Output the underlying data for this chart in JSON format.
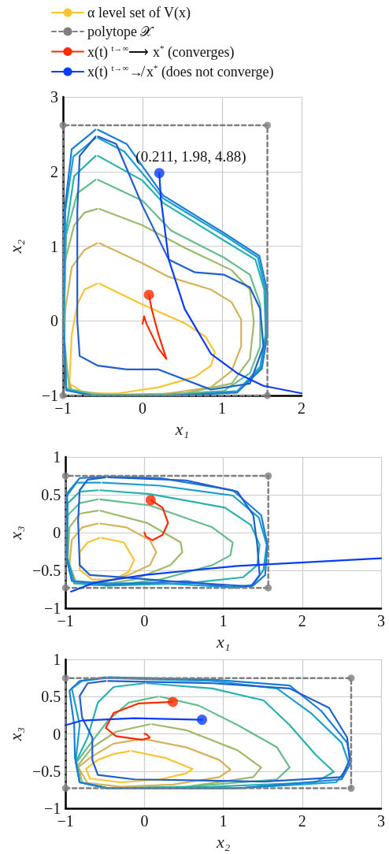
{
  "chart_data": [
    {
      "type": "line",
      "xlabel": "x₁",
      "ylabel": "x₂",
      "xlim": [
        -1,
        2
      ],
      "ylim": [
        -1,
        3
      ],
      "xticks": [
        -1,
        0,
        1,
        2
      ],
      "yticks": [
        -1,
        0,
        1,
        2,
        3
      ],
      "grid": true,
      "legend": "top",
      "marker": "none",
      "line_style": "solid",
      "annotations": [
        {
          "text": "(0.211, 1.98, 4.88)",
          "x": 0.211,
          "y": 1.98
        }
      ],
      "series": [
        {
          "name": "α level set of V(x)",
          "color": "#f7c531",
          "x": [
            -0.54,
            0,
            0.53,
            0.79,
            0.91,
            0.86,
            0.66,
            0.2,
            -0.3,
            -0.73,
            -0.92,
            -0.89,
            -0.82,
            -0.73,
            -0.57
          ],
          "values": [
            0.5,
            0.22,
            -0.03,
            -0.21,
            -0.42,
            -0.6,
            -0.75,
            -0.89,
            -0.97,
            -0.97,
            -0.84,
            -0.18,
            0.22,
            0.42,
            0.5
          ]
        },
        {
          "color": "#d4b35c",
          "x": [
            -0.54,
            0,
            0.33,
            0.86,
            1.12,
            1.24,
            1.24,
            1.12,
            0.86,
            0.2,
            -0.46,
            -0.89,
            -0.99,
            -0.97,
            -0.89,
            -0.73,
            -0.57
          ],
          "values": [
            1.04,
            0.77,
            0.59,
            0.42,
            0.25,
            0.02,
            -0.34,
            -0.67,
            -0.89,
            -0.99,
            -1.0,
            -0.94,
            -0.51,
            0.16,
            0.72,
            0.95,
            1.04
          ]
        },
        {
          "color": "#9dba6a",
          "x": [
            -0.54,
            0,
            0.53,
            1.12,
            1.35,
            1.4,
            1.35,
            1.12,
            0.53,
            -0.46,
            -0.92,
            -0.99,
            -0.97,
            -0.86,
            -0.73,
            -0.57
          ],
          "values": [
            1.5,
            1.28,
            0.98,
            0.68,
            0.42,
            -0.01,
            -0.51,
            -0.84,
            -0.97,
            -0.99,
            -0.92,
            -0.18,
            0.82,
            1.28,
            1.45,
            1.5
          ]
        },
        {
          "color": "#66bc8c",
          "x": [
            -0.56,
            0,
            0.36,
            1.02,
            1.35,
            1.48,
            1.48,
            1.35,
            1.02,
            0.2,
            -0.63,
            -0.96,
            -0.99,
            -0.96,
            -0.82,
            -0.59
          ],
          "values": [
            1.89,
            1.61,
            1.21,
            0.85,
            0.62,
            0.22,
            -0.34,
            -0.7,
            -0.94,
            -0.99,
            -0.99,
            -0.9,
            -0.01,
            1.15,
            1.71,
            1.89
          ]
        },
        {
          "color": "#26b2b0",
          "x": [
            -0.56,
            0,
            0.26,
            1.02,
            1.42,
            1.53,
            1.55,
            1.48,
            1.19,
            0.36,
            -0.63,
            -0.96,
            -0.99,
            -0.97,
            -0.86,
            -0.59
          ],
          "values": [
            2.21,
            1.88,
            1.58,
            1.08,
            0.82,
            0.42,
            -0.18,
            -0.61,
            -0.94,
            -1.0,
            -1.0,
            -0.92,
            -0.01,
            1.15,
            1.94,
            2.21
          ]
        },
        {
          "color": "#1a9ed0",
          "x": [
            -0.56,
            -0.23,
            0.26,
            1.02,
            1.45,
            1.55,
            1.55,
            1.48,
            1.19,
            0.36,
            -0.63,
            -0.96,
            -0.99,
            -0.97,
            -0.87,
            -0.59
          ],
          "values": [
            2.45,
            2.27,
            1.64,
            1.15,
            0.85,
            0.39,
            -0.18,
            -0.64,
            -0.95,
            -1.0,
            -1.0,
            -0.92,
            -0.01,
            1.48,
            2.2,
            2.45
          ]
        },
        {
          "color": "#1b7ed6",
          "x": [
            -0.56,
            -0.2,
            0.26,
            1.02,
            1.47,
            1.57,
            1.57,
            1.5,
            1.19,
            0.36,
            -0.63,
            -0.96,
            -1.0,
            -0.98,
            -0.89,
            -0.59
          ],
          "values": [
            2.56,
            2.37,
            1.68,
            1.18,
            0.87,
            0.39,
            -0.18,
            -0.64,
            -0.96,
            -1.0,
            -1.0,
            -0.93,
            -0.01,
            1.48,
            2.3,
            2.56
          ]
        },
        {
          "color": "#1f5fd0",
          "x": [
            -0.56,
            -0.33,
            0,
            0.33,
            0.66,
            1.02,
            1.35,
            1.48,
            1.52,
            1.35,
            0.86,
            0.2,
            -0.2,
            -0.56,
            -0.79,
            -0.82,
            -0.82,
            -0.79,
            -0.59
          ],
          "values": [
            2.47,
            2.37,
            1.54,
            0.82,
            0.65,
            0.62,
            0.45,
            0.16,
            -0.34,
            -0.84,
            -0.92,
            -0.65,
            -0.65,
            -0.6,
            -0.47,
            -0.01,
            1.48,
            2.21,
            2.47
          ]
        },
        {
          "name": "polytope 𝒳",
          "color": "#808080",
          "line_style": "dashed",
          "x": [
            -1,
            1.57,
            1.57,
            -1,
            -1
          ],
          "values": [
            -1,
            -1,
            2.62,
            2.62,
            -0.97
          ]
        },
        {
          "type": "scatter",
          "marker": "circle",
          "color": "#808080",
          "x": [
            -1,
            1.57,
            1.57,
            -1
          ],
          "values": [
            -1,
            -1,
            2.62,
            2.62
          ]
        },
        {
          "name": "x(t) $^{t→∞}$⟶ x$^{*}$ (converges)",
          "color": "#ff2a00",
          "x": [
            0.08,
            0.115,
            0.2,
            0.3,
            0.2,
            0.05,
            0.02,
            0
          ],
          "values": [
            0.35,
            0.16,
            -0.18,
            -0.51,
            -0.37,
            -0.04,
            0.06,
            -0.04
          ]
        },
        {
          "type": "scatter",
          "marker": "circle",
          "color": "#ff2a00",
          "x": [
            0.08
          ],
          "values": [
            0.35
          ]
        },
        {
          "name": "x(t) $^{t→∞}$↛ x$^{*}$ (does not converge)",
          "color": "#0a3cff",
          "x": [
            0.211,
            0.23,
            0.33,
            0.53,
            0.86,
            1.19,
            1.52,
            2.0
          ],
          "values": [
            1.98,
            1.64,
            0.82,
            0.16,
            -0.44,
            -0.7,
            -0.87,
            -0.97
          ]
        },
        {
          "type": "scatter",
          "marker": "circle",
          "color": "#0a3cff",
          "x": [
            0.211
          ],
          "values": [
            1.98
          ]
        }
      ]
    },
    {
      "type": "line",
      "xlabel": "x₁",
      "ylabel": "x₃",
      "xlim": [
        -1,
        3
      ],
      "ylim": [
        -1,
        1
      ],
      "xticks": [
        -1,
        0,
        1,
        2,
        3
      ],
      "yticks": [
        -1,
        -0.5,
        0,
        0.5,
        1
      ],
      "grid": true,
      "marker": "none",
      "line_style": "solid",
      "series": [
        {
          "color": "#f7c531",
          "x": [
            -0.54,
            -0.26,
            -0.13,
            -0.2,
            -0.39,
            -0.66,
            -0.82,
            -0.82,
            -0.72,
            -0.57
          ],
          "values": [
            -0.07,
            -0.13,
            -0.36,
            -0.52,
            -0.62,
            -0.62,
            -0.49,
            -0.26,
            -0.13,
            -0.07
          ]
        },
        {
          "color": "#d4b35c",
          "x": [
            -0.56,
            -0.23,
            0.07,
            0.15,
            0.07,
            -0.2,
            -0.56,
            -0.86,
            -0.95,
            -0.92,
            -0.79,
            -0.59
          ],
          "values": [
            0.12,
            0.07,
            -0.1,
            -0.26,
            -0.43,
            -0.56,
            -0.67,
            -0.66,
            -0.43,
            -0.1,
            0.07,
            0.12
          ]
        },
        {
          "color": "#9dba6a",
          "x": [
            -0.56,
            0.03,
            0.46,
            0.48,
            0.33,
            -0.13,
            -0.63,
            -0.89,
            -0.97,
            -0.95,
            -0.82,
            -0.59
          ],
          "values": [
            0.29,
            0.13,
            -0.13,
            -0.26,
            -0.43,
            -0.62,
            -0.7,
            -0.66,
            -0.33,
            0.07,
            0.25,
            0.29
          ]
        },
        {
          "color": "#66bc8c",
          "x": [
            -0.56,
            0.07,
            0.86,
            1.12,
            1.09,
            0.86,
            0.2,
            -0.46,
            -0.89,
            -0.98,
            -0.97,
            -0.82,
            -0.59
          ],
          "values": [
            0.44,
            0.36,
            0.07,
            -0.13,
            -0.3,
            -0.43,
            -0.62,
            -0.7,
            -0.67,
            -0.33,
            0.23,
            0.39,
            0.44
          ]
        },
        {
          "color": "#26b2b0",
          "x": [
            -0.56,
            0.07,
            1.02,
            1.35,
            1.46,
            1.43,
            1.25,
            0.53,
            -0.46,
            -0.89,
            -0.98,
            -0.97,
            -0.82,
            -0.59
          ],
          "values": [
            0.56,
            0.51,
            0.33,
            0.1,
            -0.16,
            -0.43,
            -0.59,
            -0.67,
            -0.7,
            -0.67,
            -0.33,
            0.39,
            0.54,
            0.56
          ]
        },
        {
          "color": "#1a9ed0",
          "x": [
            -0.53,
            0.2,
            1.12,
            1.45,
            1.55,
            1.51,
            1.38,
            1.12,
            0.2,
            -0.46,
            -0.89,
            -0.98,
            -0.98,
            -0.86,
            -0.56
          ],
          "values": [
            0.66,
            0.62,
            0.49,
            0.2,
            -0.16,
            -0.49,
            -0.69,
            -0.72,
            -0.67,
            -0.67,
            -0.64,
            -0.33,
            0.49,
            0.66,
            0.66
          ]
        },
        {
          "color": "#1b7ed6",
          "x": [
            -0.46,
            0.2,
            1.12,
            1.48,
            1.56,
            1.53,
            1.38,
            1.12,
            0.53,
            -0.46,
            -0.92,
            -0.99,
            -0.98,
            -0.82,
            -0.49
          ],
          "values": [
            0.74,
            0.72,
            0.56,
            0.23,
            -0.16,
            -0.56,
            -0.7,
            -0.73,
            -0.64,
            -0.69,
            -0.64,
            -0.33,
            0.52,
            0.72,
            0.74
          ]
        },
        {
          "color": "#1f5fd0",
          "x": [
            -0.46,
            0.53,
            1.18,
            1.38,
            1.43,
            1.46,
            1.35,
            0.53,
            -0.3,
            -0.69,
            -0.82,
            -0.84,
            -0.82,
            -0.72,
            -0.49
          ],
          "values": [
            0.73,
            0.69,
            0.54,
            0.23,
            -0.16,
            -0.56,
            -0.71,
            -0.66,
            -0.59,
            -0.56,
            -0.43,
            0.16,
            0.56,
            0.7,
            0.73
          ]
        },
        {
          "color": "#808080",
          "line_style": "dashed",
          "x": [
            -1,
            1.57,
            1.57,
            -1,
            -1
          ],
          "values": [
            -0.73,
            -0.73,
            0.75,
            0.75,
            -0.71
          ]
        },
        {
          "type": "scatter",
          "marker": "circle",
          "color": "#808080",
          "x": [
            -1,
            1.57,
            1.57,
            -1
          ],
          "values": [
            -0.73,
            -0.73,
            0.75,
            0.75
          ]
        },
        {
          "color": "#ff2a00",
          "x": [
            0.08,
            0.23,
            0.3,
            0.23,
            0.1,
            0.02,
            0
          ],
          "values": [
            0.43,
            0.33,
            0.13,
            -0.03,
            -0.1,
            -0.05,
            0
          ]
        },
        {
          "type": "scatter",
          "marker": "circle",
          "color": "#ff2a00",
          "x": [
            0.08
          ],
          "values": [
            0.43
          ]
        },
        {
          "color": "#0a3cff",
          "x": [
            -0.93,
            -0.63,
            0,
            1.18,
            3
          ],
          "values": [
            -0.78,
            -0.66,
            -0.56,
            -0.44,
            -0.34
          ]
        }
      ]
    },
    {
      "type": "line",
      "xlabel": "x₂",
      "ylabel": "x₃",
      "xlim": [
        -1,
        3
      ],
      "ylim": [
        -1,
        1
      ],
      "xticks": [
        -1,
        0,
        1,
        2,
        3
      ],
      "yticks": [
        -1,
        -0.5,
        0,
        0.5,
        1
      ],
      "grid": true,
      "marker": "none",
      "line_style": "solid",
      "series": [
        {
          "color": "#f7c531",
          "x": [
            -0.16,
            0.26,
            0.61,
            0.53,
            0.2,
            -0.3,
            -0.69,
            -0.74,
            -0.59,
            -0.39,
            -0.19
          ],
          "values": [
            -0.23,
            -0.32,
            -0.47,
            -0.53,
            -0.61,
            -0.65,
            -0.6,
            -0.47,
            -0.35,
            -0.27,
            -0.23
          ]
        },
        {
          "color": "#d4b35c",
          "x": [
            0,
            0.53,
            0.95,
            1.09,
            0.95,
            0.36,
            -0.3,
            -0.72,
            -0.84,
            -0.69,
            -0.39,
            -0.03
          ],
          "values": [
            -0.07,
            -0.18,
            -0.35,
            -0.48,
            -0.58,
            -0.68,
            -0.71,
            -0.66,
            -0.45,
            -0.32,
            -0.13,
            -0.07
          ]
        },
        {
          "color": "#9dba6a",
          "x": [
            0.1,
            0.53,
            1.18,
            1.48,
            1.38,
            0.53,
            -0.46,
            -0.79,
            -0.84,
            -0.66,
            -0.36,
            0.07
          ],
          "values": [
            0.13,
            0.05,
            -0.22,
            -0.45,
            -0.58,
            -0.71,
            -0.73,
            -0.65,
            -0.42,
            -0.18,
            0.03,
            0.13
          ]
        },
        {
          "color": "#66bc8c",
          "x": [
            0.2,
            0.69,
            1.18,
            1.68,
            1.84,
            1.68,
            0.53,
            -0.46,
            -0.82,
            -0.86,
            -0.72,
            -0.46,
            -0.2,
            0.17
          ],
          "values": [
            0.5,
            0.38,
            0.12,
            -0.18,
            -0.45,
            -0.61,
            -0.71,
            -0.73,
            -0.65,
            -0.38,
            -0.18,
            0.18,
            0.42,
            0.5
          ]
        },
        {
          "color": "#26b2b0",
          "x": [
            0.03,
            0.86,
            1.51,
            1.84,
            2.17,
            2.4,
            2.17,
            0.86,
            -0.46,
            -0.82,
            -0.87,
            -0.72,
            -0.59,
            -0.39,
            0
          ],
          "values": [
            0.68,
            0.61,
            0.45,
            0.12,
            -0.28,
            -0.51,
            -0.65,
            -0.71,
            -0.73,
            -0.65,
            -0.38,
            -0.05,
            0.42,
            0.63,
            0.68
          ]
        },
        {
          "color": "#1a9ed0",
          "x": [
            -0.46,
            0.86,
            1.68,
            2.11,
            2.5,
            2.6,
            2.43,
            1.18,
            -0.46,
            -0.82,
            -0.87,
            -0.82,
            -0.92,
            -0.79,
            -0.49
          ],
          "values": [
            0.75,
            0.71,
            0.61,
            0.28,
            -0.12,
            -0.42,
            -0.65,
            -0.73,
            -0.73,
            -0.65,
            -0.35,
            0.12,
            0.61,
            0.71,
            0.75
          ]
        },
        {
          "color": "#1b7ed6",
          "x": [
            -0.46,
            0.86,
            1.84,
            2.24,
            2.57,
            2.62,
            2.5,
            1.18,
            -0.46,
            -0.82,
            -0.88,
            -0.89,
            -0.95,
            -0.82,
            -0.49
          ],
          "values": [
            0.76,
            0.73,
            0.65,
            0.31,
            -0.12,
            -0.38,
            -0.61,
            -0.73,
            -0.73,
            -0.65,
            -0.32,
            0.12,
            0.58,
            0.71,
            0.76
          ]
        },
        {
          "color": "#1f5fd0",
          "x": [
            -0.46,
            0.86,
            1.84,
            2.34,
            2.57,
            2.6,
            2.5,
            1.51,
            -0.13,
            -0.59,
            -0.66,
            -0.66,
            -0.79,
            -0.82,
            -0.72,
            -0.49
          ],
          "values": [
            0.71,
            0.68,
            0.61,
            0.35,
            -0.05,
            -0.35,
            -0.58,
            -0.64,
            -0.61,
            -0.55,
            -0.35,
            -0.05,
            0.22,
            0.51,
            0.68,
            0.71
          ]
        },
        {
          "color": "#808080",
          "line_style": "dashed",
          "x": [
            -1,
            2.62,
            2.62,
            -1,
            -1
          ],
          "values": [
            -0.73,
            -0.73,
            0.75,
            0.75,
            -0.71
          ]
        },
        {
          "type": "scatter",
          "marker": "circle",
          "color": "#808080",
          "x": [
            -1,
            2.62,
            2.62,
            -1
          ],
          "values": [
            -0.73,
            -0.73,
            0.75,
            0.75
          ]
        },
        {
          "color": "#ff2a00",
          "x": [
            0.36,
            -0.07,
            -0.39,
            -0.49,
            -0.36,
            -0.03,
            0.07,
            0.02,
            0
          ],
          "values": [
            0.43,
            0.41,
            0.28,
            0.08,
            -0.03,
            -0.08,
            -0.05,
            0,
            0
          ]
        },
        {
          "type": "scatter",
          "marker": "circle",
          "color": "#ff2a00",
          "x": [
            0.36
          ],
          "values": [
            0.43
          ]
        },
        {
          "color": "#0a3cff",
          "x": [
            0.73,
            -0.13,
            -0.79,
            -0.99
          ],
          "values": [
            0.19,
            0.21,
            0.18,
            0.12
          ]
        },
        {
          "type": "scatter",
          "marker": "circle",
          "color": "#0a3cff",
          "x": [
            0.73
          ],
          "values": [
            0.19
          ]
        }
      ]
    }
  ]
}
